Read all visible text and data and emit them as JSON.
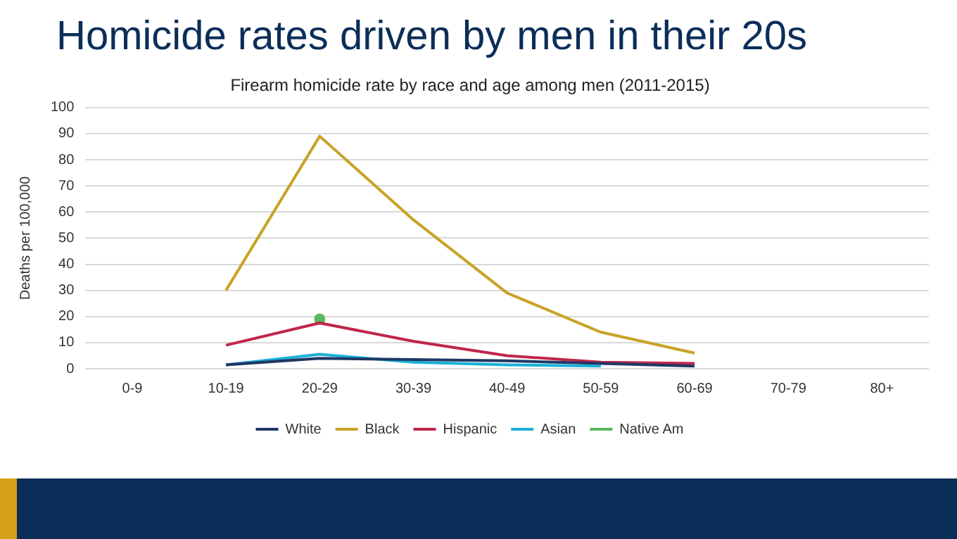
{
  "chart_data": {
    "type": "line",
    "title": "Homicide rates driven by men in their 20s",
    "subtitle": "Firearm homicide rate by race and age among men (2011-2015)",
    "ylabel": "Deaths per 100,000",
    "categories": [
      "0-9",
      "10-19",
      "20-29",
      "30-39",
      "40-49",
      "50-59",
      "60-69",
      "70-79",
      "80+"
    ],
    "series": [
      {
        "name": "White",
        "color": "#1f3864",
        "values": [
          null,
          1.5,
          4,
          3.5,
          3,
          2,
          1,
          null,
          null
        ]
      },
      {
        "name": "Black",
        "color": "#c9a227",
        "values": [
          null,
          30,
          89,
          57,
          29,
          14,
          6,
          null,
          null
        ]
      },
      {
        "name": "Hispanic",
        "color": "#c0264b",
        "values": [
          null,
          9,
          17.5,
          10.5,
          5,
          2.5,
          2,
          null,
          null
        ]
      },
      {
        "name": "Asian",
        "color": "#1ab0d8",
        "values": [
          null,
          1.5,
          5.5,
          2.5,
          1.5,
          1,
          null,
          null,
          null
        ]
      },
      {
        "name": "Native Am",
        "color": "#5cb85c",
        "values": [
          null,
          null,
          19,
          null,
          null,
          null,
          null,
          null,
          null
        ],
        "marker": "circle"
      }
    ],
    "ylim": [
      0,
      100
    ],
    "yticks": [
      0,
      10,
      20,
      30,
      40,
      50,
      60,
      70,
      80,
      90,
      100
    ],
    "grid": "y",
    "legend": "bottom",
    "marker": "none"
  }
}
